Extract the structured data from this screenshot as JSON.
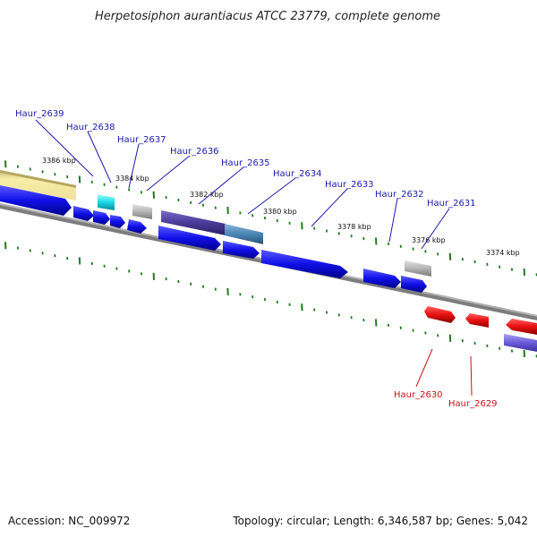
{
  "title": "Herpetosiphon aurantiacus ATCC 23779, complete genome",
  "footer": {
    "accession": "Accession: NC_009972",
    "summary": "Topology: circular; Length: 6,346,587 bp; Genes: 5,042"
  },
  "kbp_markers": [
    "3386 kbp",
    "3384 kbp",
    "3382 kbp",
    "3380 kbp",
    "3378 kbp",
    "3376 kbp",
    "3374 kbp"
  ],
  "gene_labels": [
    {
      "name": "Haur_2639",
      "strand": "forward"
    },
    {
      "name": "Haur_2638",
      "strand": "forward"
    },
    {
      "name": "Haur_2637",
      "strand": "forward"
    },
    {
      "name": "Haur_2636",
      "strand": "forward"
    },
    {
      "name": "Haur_2635",
      "strand": "forward"
    },
    {
      "name": "Haur_2634",
      "strand": "forward"
    },
    {
      "name": "Haur_2633",
      "strand": "forward"
    },
    {
      "name": "Haur_2632",
      "strand": "forward"
    },
    {
      "name": "Haur_2631",
      "strand": "forward"
    },
    {
      "name": "Haur_2630",
      "strand": "reverse"
    },
    {
      "name": "Haur_2629",
      "strand": "reverse"
    }
  ],
  "colors": {
    "forward_label": "#1a1aa8",
    "reverse_label": "#c81414",
    "forward_gene": "#1010e8",
    "reverse_gene": "#e81010",
    "tick": "#1f7a1f",
    "backbone": "#808080"
  }
}
